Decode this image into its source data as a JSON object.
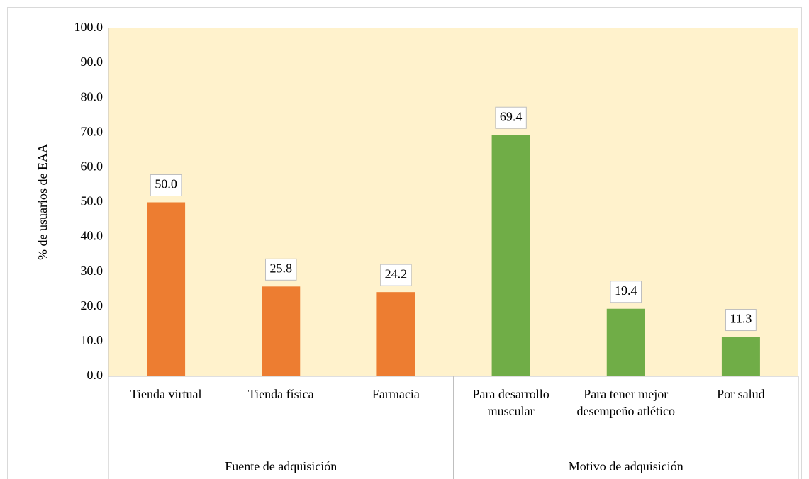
{
  "chart_data": {
    "type": "bar",
    "y_axis_label": "% de usuarios de EAA",
    "ylim": [
      0,
      100
    ],
    "yticks": [
      {
        "value": 0,
        "label": "0.0"
      },
      {
        "value": 10,
        "label": "10.0"
      },
      {
        "value": 20,
        "label": "20.0"
      },
      {
        "value": 30,
        "label": "30.0"
      },
      {
        "value": 40,
        "label": "40.0"
      },
      {
        "value": 50,
        "label": "50.0"
      },
      {
        "value": 60,
        "label": "60.0"
      },
      {
        "value": 70,
        "label": "70.0"
      },
      {
        "value": 80,
        "label": "80.0"
      },
      {
        "value": 90,
        "label": "90.0"
      },
      {
        "value": 100,
        "label": "100.0"
      }
    ],
    "grid": false,
    "plot_background": "#fff2cc",
    "groups": [
      {
        "label": "Fuente de adquisición",
        "color": "#ed7d31",
        "categories": [
          "Tienda virtual",
          "Tienda física",
          "Farmacia"
        ],
        "values": [
          50.0,
          25.8,
          24.2
        ],
        "value_labels": [
          "50.0",
          "25.8",
          "24.2"
        ]
      },
      {
        "label": "Motivo de adquisición",
        "color": "#70ad47",
        "categories": [
          "Para desarrollo muscular",
          "Para tener mejor desempeño atlético",
          "Por salud"
        ],
        "values": [
          69.4,
          19.4,
          11.3
        ],
        "value_labels": [
          "69.4",
          "19.4",
          "11.3"
        ]
      }
    ]
  }
}
